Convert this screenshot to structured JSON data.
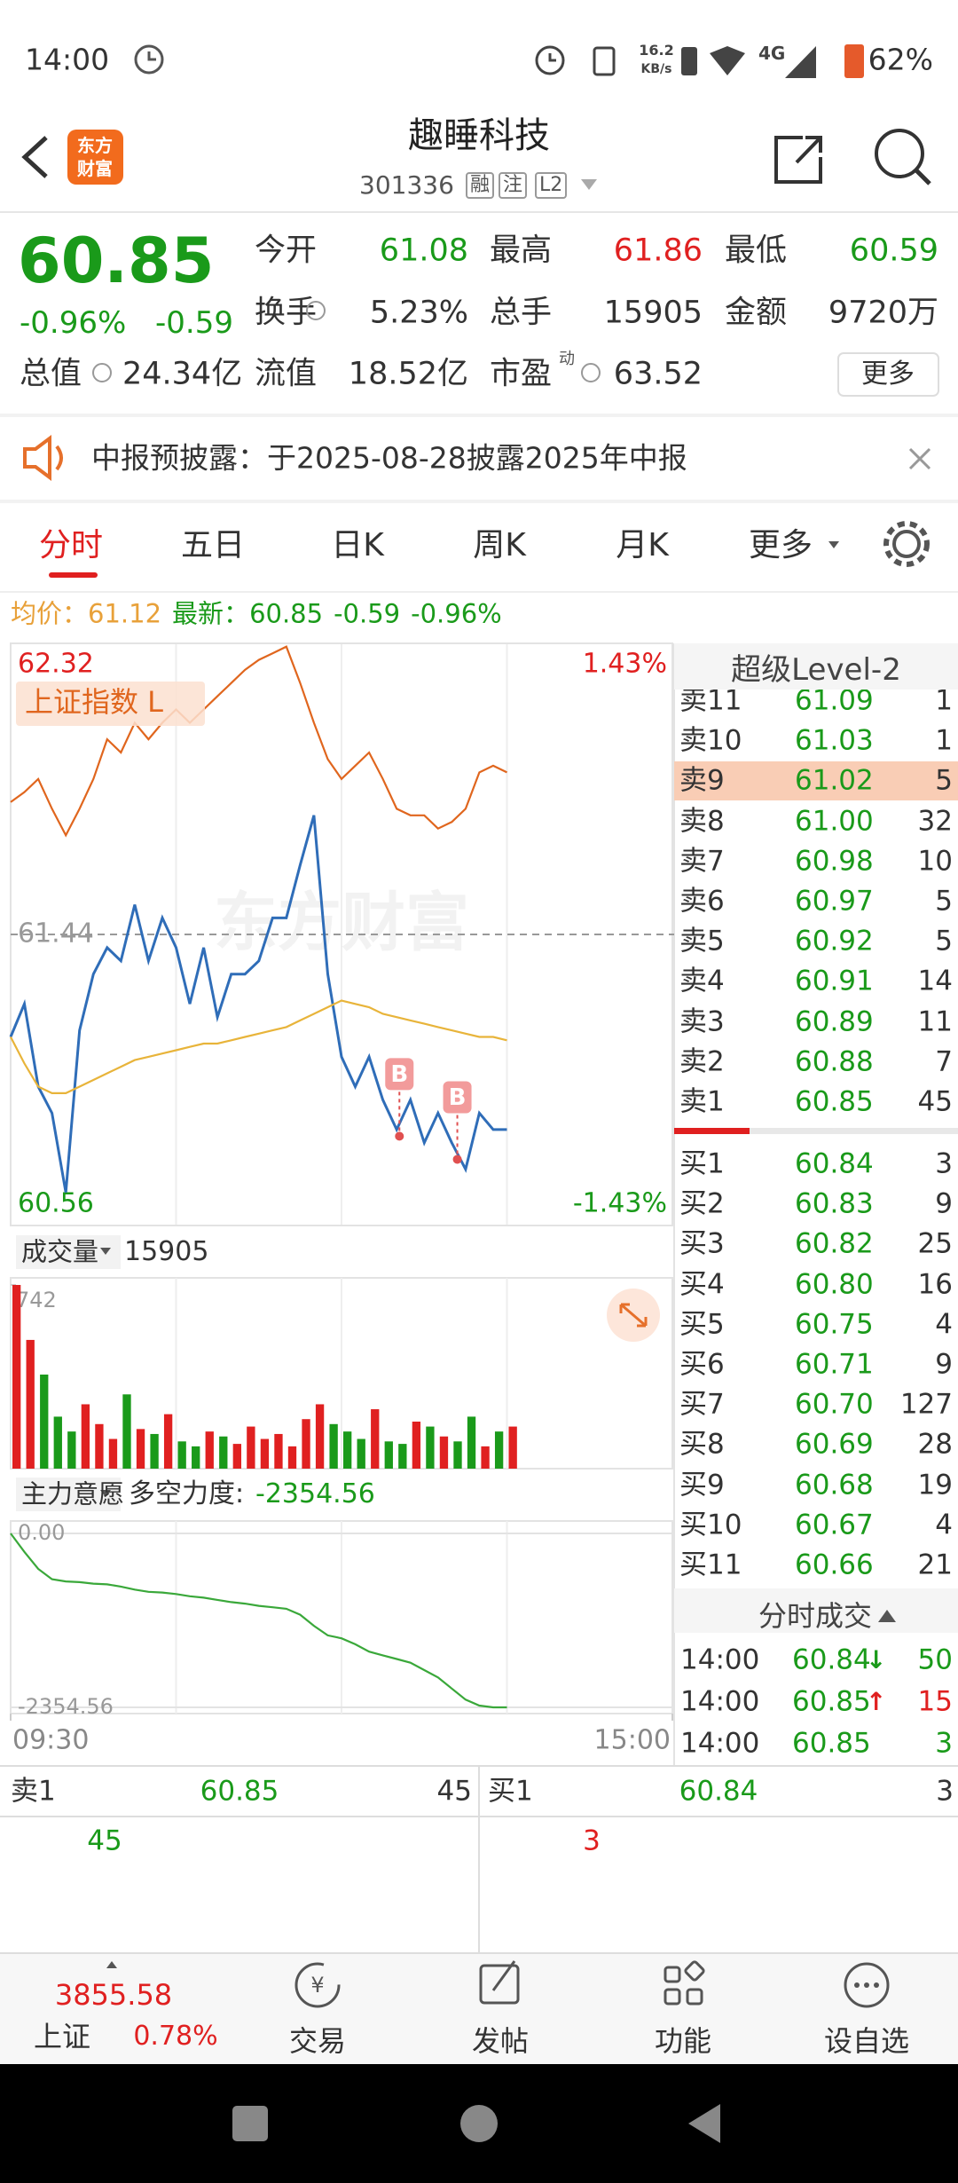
{
  "status_bar": {
    "time": "14:00",
    "net_speed": "16.2",
    "net_unit": "KB/s",
    "network": "4G",
    "battery": "62%"
  },
  "header": {
    "logo": [
      "东方",
      "财富"
    ],
    "title": "趣睡科技",
    "code": "301336",
    "tags": [
      "融",
      "注",
      "L2"
    ]
  },
  "quote": {
    "price": "60.85",
    "change_pct": "-0.96%",
    "change": "-0.59",
    "fields": [
      {
        "label": "今开",
        "value": "61.08"
      },
      {
        "label": "最高",
        "value": "61.86"
      },
      {
        "label": "最低",
        "value": "60.59"
      },
      {
        "label": "换手",
        "value": "5.23%"
      },
      {
        "label": "总手",
        "value": "15905"
      },
      {
        "label": "金额",
        "value": "9720万"
      },
      {
        "label": "总值",
        "value": "24.34亿"
      },
      {
        "label": "流值",
        "value": "18.52亿"
      },
      {
        "label": "市盈",
        "sup": "动",
        "value": "63.52"
      }
    ],
    "more": "更多"
  },
  "notice": "中报预披露：于2025-08-28披露2025年中报",
  "tabs": [
    "分时",
    "五日",
    "日K",
    "周K",
    "月K",
    "更多"
  ],
  "summary": {
    "avg_label": "均价：",
    "avg": "61.12",
    "last_label": "最新：",
    "last": "60.85",
    "change": "-0.59",
    "change_pct": "-0.96%"
  },
  "chart_data": [
    {
      "type": "line",
      "watermark": "东方财富",
      "x": [
        0,
        5,
        10,
        15,
        20,
        25,
        30,
        35,
        40,
        45,
        50,
        55,
        60,
        65,
        70,
        75,
        80,
        85,
        90,
        95,
        100,
        105,
        110,
        115,
        120,
        125,
        130,
        135,
        140,
        145,
        150,
        155,
        160,
        165,
        170,
        175,
        180
      ],
      "xlim": [
        0,
        240
      ],
      "xticks": [
        {
          "value": 0,
          "label": "09:30"
        },
        {
          "value": 240,
          "label": "15:00"
        }
      ],
      "ylim": [
        60.56,
        62.32
      ],
      "yticks": [
        60.56,
        61.44,
        62.32
      ],
      "y2lim": [
        -1.43,
        1.43
      ],
      "y2ticks": [
        {
          "value": 1.43,
          "label": "1.43%"
        },
        {
          "value": -1.43,
          "label": "-1.43%"
        }
      ],
      "series": [
        {
          "name": "上证指数 L",
          "color": "#e0661e",
          "values": [
            61.84,
            61.87,
            61.91,
            61.82,
            61.74,
            61.82,
            61.91,
            62.03,
            61.99,
            62.08,
            62.03,
            62.08,
            62.12,
            62.08,
            62.12,
            62.16,
            62.2,
            62.24,
            62.27,
            62.29,
            62.31,
            62.2,
            62.08,
            61.97,
            61.91,
            61.95,
            61.99,
            61.91,
            61.82,
            61.8,
            61.8,
            61.76,
            61.78,
            61.82,
            61.93,
            61.95,
            61.93
          ]
        },
        {
          "color": "#2f6db8",
          "values": [
            61.13,
            61.23,
            60.98,
            60.9,
            60.66,
            61.15,
            61.32,
            61.4,
            61.36,
            61.53,
            61.36,
            61.49,
            61.4,
            61.23,
            61.4,
            61.19,
            61.32,
            61.32,
            61.36,
            61.49,
            61.49,
            61.65,
            61.8,
            61.32,
            61.07,
            60.98,
            61.07,
            60.94,
            60.85,
            60.94,
            60.81,
            60.9,
            60.81,
            60.73,
            60.9,
            60.85,
            60.85
          ]
        },
        {
          "color": "#e8b43a",
          "values": [
            61.13,
            61.05,
            60.98,
            60.96,
            60.96,
            60.98,
            61.0,
            61.02,
            61.04,
            61.06,
            61.07,
            61.08,
            61.09,
            61.1,
            61.11,
            61.11,
            61.12,
            61.13,
            61.14,
            61.15,
            61.16,
            61.18,
            61.2,
            61.22,
            61.24,
            61.23,
            61.22,
            61.2,
            61.19,
            61.18,
            61.17,
            61.16,
            61.15,
            61.14,
            61.13,
            61.13,
            61.12
          ]
        }
      ],
      "markers": [
        {
          "label": "B",
          "x": 141,
          "value": 60.83
        },
        {
          "label": "B",
          "x": 162,
          "value": 60.76
        }
      ]
    },
    {
      "type": "bar",
      "title": "成交量",
      "total": 15905,
      "x": [
        0,
        5,
        10,
        15,
        20,
        25,
        30,
        35,
        40,
        45,
        50,
        55,
        60,
        65,
        70,
        75,
        80,
        85,
        90,
        95,
        100,
        105,
        110,
        115,
        120,
        125,
        130,
        135,
        140,
        145,
        150,
        155,
        160,
        165,
        170,
        175,
        180
      ],
      "values": [
        742,
        520,
        380,
        210,
        150,
        260,
        180,
        120,
        300,
        160,
        140,
        220,
        110,
        90,
        150,
        130,
        100,
        170,
        120,
        140,
        90,
        200,
        260,
        180,
        150,
        120,
        240,
        110,
        100,
        190,
        170,
        130,
        110,
        210,
        90,
        150,
        170
      ],
      "ylim": [
        0,
        742
      ],
      "yticks": [
        742
      ],
      "colors": {
        "up": "#e02020",
        "down": "#1a9a1a"
      }
    },
    {
      "type": "line",
      "title": "主力意愿",
      "label": "多空力度:",
      "current": -2354.56,
      "color": "#3aa83a",
      "x": [
        0,
        5,
        10,
        15,
        20,
        25,
        30,
        35,
        40,
        45,
        50,
        55,
        60,
        65,
        70,
        75,
        80,
        85,
        90,
        95,
        100,
        105,
        110,
        115,
        120,
        125,
        130,
        135,
        140,
        145,
        150,
        155,
        160,
        165,
        170,
        175,
        180
      ],
      "values": [
        0,
        -250,
        -480,
        -620,
        -650,
        -660,
        -680,
        -690,
        -720,
        -760,
        -790,
        -800,
        -820,
        -850,
        -870,
        -900,
        -930,
        -950,
        -980,
        -1000,
        -1020,
        -1100,
        -1250,
        -1380,
        -1420,
        -1500,
        -1600,
        -1650,
        -1700,
        -1750,
        -1850,
        -1950,
        -2100,
        -2250,
        -2330,
        -2354.56,
        -2354.56
      ],
      "ylim": [
        -2354.56,
        0
      ],
      "yticks": [
        {
          "value": 0,
          "label": "0.00"
        },
        -2354.56
      ]
    }
  ],
  "order_book": {
    "title": "超级Level-2",
    "asks": [
      {
        "label": "卖11",
        "price": "61.09",
        "volume": "1"
      },
      {
        "label": "卖10",
        "price": "61.03",
        "volume": "1"
      },
      {
        "label": "卖9",
        "price": "61.02",
        "volume": "5"
      },
      {
        "label": "卖8",
        "price": "61.00",
        "volume": "32"
      },
      {
        "label": "卖7",
        "price": "60.98",
        "volume": "10"
      },
      {
        "label": "卖6",
        "price": "60.97",
        "volume": "5"
      },
      {
        "label": "卖5",
        "price": "60.92",
        "volume": "5"
      },
      {
        "label": "卖4",
        "price": "60.91",
        "volume": "14"
      },
      {
        "label": "卖3",
        "price": "60.89",
        "volume": "11"
      },
      {
        "label": "卖2",
        "price": "60.88",
        "volume": "7"
      },
      {
        "label": "卖1",
        "price": "60.85",
        "volume": "45"
      }
    ],
    "bids": [
      {
        "label": "买1",
        "price": "60.84",
        "volume": "3"
      },
      {
        "label": "买2",
        "price": "60.83",
        "volume": "9"
      },
      {
        "label": "买3",
        "price": "60.82",
        "volume": "25"
      },
      {
        "label": "买4",
        "price": "60.80",
        "volume": "16"
      },
      {
        "label": "买5",
        "price": "60.75",
        "volume": "4"
      },
      {
        "label": "买6",
        "price": "60.71",
        "volume": "9"
      },
      {
        "label": "买7",
        "price": "60.70",
        "volume": "127"
      },
      {
        "label": "买8",
        "price": "60.69",
        "volume": "28"
      },
      {
        "label": "买9",
        "price": "60.68",
        "volume": "19"
      },
      {
        "label": "买10",
        "price": "60.67",
        "volume": "4"
      },
      {
        "label": "买11",
        "price": "60.66",
        "volume": "21"
      }
    ]
  },
  "trades": {
    "title": "分时成交",
    "rows": [
      {
        "time": "14:00",
        "price": "60.84",
        "arrow": "↓",
        "volume": "50"
      },
      {
        "time": "14:00",
        "price": "60.85",
        "arrow": "↑",
        "volume": "15"
      },
      {
        "time": "14:00",
        "price": "60.85",
        "volume": "3"
      }
    ]
  },
  "bottom_quote": {
    "ask_label": "卖1",
    "ask_price": "60.85",
    "ask_volume": "45",
    "bid_label": "买1",
    "bid_price": "60.84",
    "bid_volume": "3",
    "ask_detail": "45",
    "bid_detail": "3"
  },
  "nav": {
    "index_value": "3855.58",
    "index_name": "上证",
    "index_pct": "0.78%",
    "items": [
      "交易",
      "发帖",
      "功能",
      "设自选"
    ]
  }
}
